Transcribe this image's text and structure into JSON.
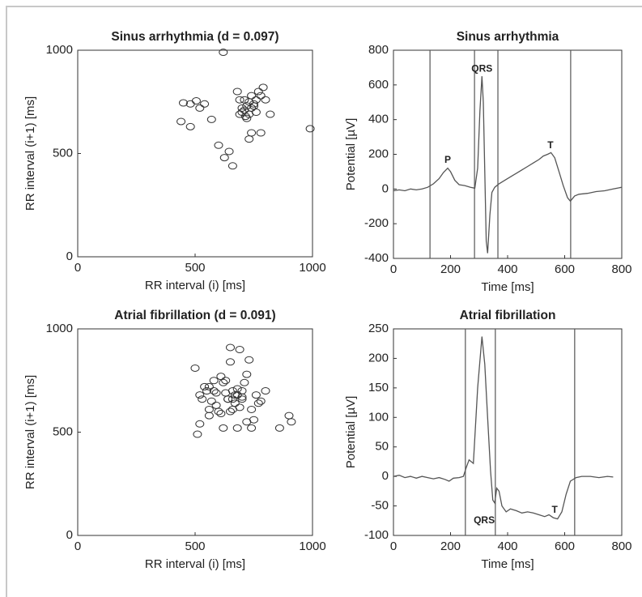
{
  "chart_data": [
    {
      "type": "scatter",
      "title": "Sinus arrhythmia (d = 0.097)",
      "xlabel": "RR interval (i) [ms]",
      "ylabel": "RR interval (i+1) [ms]",
      "xlim": [
        0,
        1000
      ],
      "ylim": [
        0,
        1000
      ],
      "xticks": [
        0,
        500,
        1000
      ],
      "yticks": [
        0,
        500,
        1000
      ],
      "color": "#333333",
      "x": [
        620,
        450,
        480,
        505,
        520,
        540,
        440,
        480,
        570,
        600,
        625,
        645,
        660,
        680,
        690,
        700,
        710,
        720,
        720,
        730,
        730,
        740,
        740,
        750,
        760,
        770,
        780,
        790,
        760,
        740,
        730,
        780,
        820,
        990,
        700,
        715,
        750,
        800,
        690,
        710
      ],
      "values": [
        990,
        745,
        740,
        755,
        720,
        740,
        655,
        630,
        665,
        540,
        480,
        510,
        440,
        800,
        760,
        720,
        710,
        730,
        670,
        690,
        750,
        720,
        780,
        740,
        760,
        800,
        780,
        820,
        700,
        600,
        570,
        600,
        690,
        620,
        700,
        680,
        730,
        760,
        690,
        760
      ]
    },
    {
      "type": "line",
      "title": "Sinus arrhythmia",
      "xlabel": "Time [ms]",
      "ylabel": "Potential [µV]",
      "xlim": [
        0,
        800
      ],
      "ylim": [
        -400,
        800
      ],
      "xticks": [
        0,
        200,
        400,
        600,
        800
      ],
      "yticks": [
        -400,
        -200,
        0,
        200,
        400,
        600,
        800
      ],
      "color": "#555555",
      "x": [
        0,
        20,
        40,
        60,
        80,
        100,
        120,
        140,
        160,
        175,
        190,
        200,
        215,
        230,
        250,
        270,
        285,
        295,
        303,
        310,
        315,
        320,
        325,
        330,
        338,
        345,
        355,
        370,
        390,
        410,
        430,
        450,
        470,
        490,
        510,
        525,
        540,
        552,
        565,
        580,
        595,
        610,
        620,
        635,
        650,
        680,
        710,
        740,
        770,
        800
      ],
      "values": [
        -10,
        -5,
        -10,
        0,
        -5,
        0,
        10,
        30,
        60,
        95,
        120,
        100,
        50,
        25,
        20,
        10,
        5,
        120,
        450,
        650,
        500,
        100,
        -300,
        -370,
        -150,
        -20,
        10,
        30,
        50,
        70,
        90,
        110,
        130,
        150,
        170,
        190,
        200,
        210,
        180,
        100,
        20,
        -50,
        -70,
        -40,
        -30,
        -25,
        -15,
        -10,
        0,
        10
      ],
      "vlines": [
        128,
        284,
        366,
        621
      ],
      "annotations": [
        {
          "text": "P",
          "x": 190,
          "y": 165
        },
        {
          "text": "QRS",
          "x": 310,
          "y": 690
        },
        {
          "text": "T",
          "x": 550,
          "y": 250
        }
      ]
    },
    {
      "type": "scatter",
      "title": "Atrial fibrillation (d = 0.091)",
      "xlabel": "RR interval (i) [ms]",
      "ylabel": "RR interval (i+1) [ms]",
      "xlim": [
        0,
        1000
      ],
      "ylim": [
        0,
        1000
      ],
      "xticks": [
        0,
        500,
        1000
      ],
      "yticks": [
        0,
        500,
        1000
      ],
      "color": "#333333",
      "x": [
        500,
        510,
        520,
        530,
        540,
        550,
        560,
        570,
        580,
        590,
        600,
        610,
        620,
        630,
        640,
        650,
        660,
        670,
        680,
        690,
        700,
        710,
        720,
        730,
        740,
        750,
        760,
        770,
        780,
        800,
        860,
        900,
        910,
        520,
        560,
        590,
        630,
        650,
        660,
        670,
        680,
        690,
        700,
        720,
        740,
        610,
        640,
        660,
        680,
        700,
        560,
        580,
        620,
        650
      ],
      "values": [
        810,
        490,
        680,
        660,
        720,
        700,
        580,
        650,
        700,
        630,
        600,
        770,
        740,
        690,
        660,
        910,
        700,
        680,
        520,
        900,
        660,
        740,
        780,
        850,
        610,
        560,
        680,
        640,
        650,
        700,
        520,
        580,
        550,
        540,
        720,
        690,
        750,
        600,
        610,
        640,
        710,
        620,
        700,
        550,
        520,
        590,
        660,
        660,
        680,
        670,
        610,
        750,
        520,
        840
      ]
    },
    {
      "type": "line",
      "title": "Atrial fibrillation",
      "xlabel": "Time [ms]",
      "ylabel": "Potential [µV]",
      "xlim": [
        0,
        800
      ],
      "ylim": [
        -100,
        250
      ],
      "xticks": [
        0,
        200,
        400,
        600,
        800
      ],
      "yticks": [
        -100,
        -50,
        0,
        50,
        100,
        150,
        200,
        250
      ],
      "color": "#555555",
      "x": [
        0,
        20,
        40,
        60,
        80,
        100,
        120,
        140,
        160,
        180,
        195,
        210,
        230,
        245,
        255,
        265,
        280,
        295,
        310,
        320,
        330,
        340,
        348,
        355,
        362,
        370,
        380,
        395,
        410,
        430,
        450,
        470,
        490,
        510,
        530,
        545,
        560,
        575,
        590,
        605,
        620,
        640,
        660,
        690,
        720,
        750,
        770
      ],
      "values": [
        0,
        2,
        -2,
        0,
        -3,
        0,
        -2,
        -4,
        -2,
        -5,
        -8,
        -3,
        -2,
        0,
        15,
        28,
        22,
        150,
        237,
        190,
        100,
        10,
        -40,
        -45,
        -20,
        -25,
        -50,
        -60,
        -55,
        -58,
        -62,
        -60,
        -62,
        -65,
        -68,
        -65,
        -70,
        -72,
        -60,
        -30,
        -8,
        -2,
        0,
        0,
        -2,
        0,
        -1
      ],
      "vlines": [
        252,
        357,
        635
      ],
      "annotations": [
        {
          "text": "QRS",
          "x": 318,
          "y": -75
        },
        {
          "text": "T",
          "x": 565,
          "y": -57
        }
      ]
    }
  ]
}
